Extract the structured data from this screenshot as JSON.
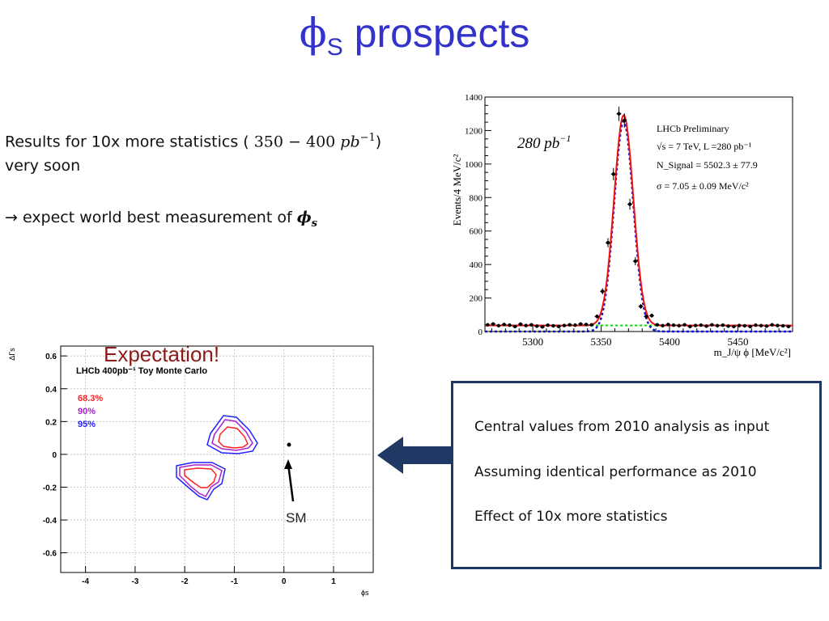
{
  "slide": {
    "title_main": "ϕ",
    "title_sub": "S",
    "title_rest": " prospects",
    "bullet1_pre": "Results for 10x more statistics (",
    "bullet1_math": "350  − 400 ",
    "bullet1_unit": "pb",
    "bullet1_exp": "−1",
    "bullet1_post": ")",
    "bullet1_line2": "very soon",
    "bullet2_pre": "→ expect world best measurement of ",
    "bullet2_phi": "ϕ",
    "bullet2_sub": "s"
  },
  "mass_plot": {
    "lumi_label": "280 ",
    "lumi_unit": "pb",
    "lumi_exp": "−1",
    "legend_line1": "LHCb Preliminary",
    "legend_line2": "√s = 7 TeV, L =280 pb⁻¹",
    "legend_line3": "N_Signal = 5502.3 ± 77.9",
    "legend_line4": "σ  = 7.05 ± 0.09 MeV/c²",
    "ylabel": "Events/4 MeV/c²",
    "xlabel": "m_J/ψ ϕ [MeV/c²]",
    "colors": {
      "fit": "#ee1111",
      "signal": "#1111cc",
      "background": "#11cc11",
      "data": "#000000"
    }
  },
  "contour_plot": {
    "expectation_label": "Expectation!",
    "plot_title": "LHCb 400pb⁻¹ Toy Monte Carlo",
    "cl_68": "68.3%",
    "cl_90": "90%",
    "cl_95": "95%",
    "sm_label": "SM",
    "ylabel": "ΔΓs",
    "xlabel": "ϕs",
    "colors": {
      "cl_68": "#ff2222",
      "cl_90": "#aa22cc",
      "cl_95": "#2222ff"
    }
  },
  "info_box": {
    "line1": "Central values from 2010 analysis as input",
    "line2": "Assuming identical performance as 2010",
    "line3": "Effect of 10x more statistics"
  },
  "chart_data": [
    {
      "type": "scatter",
      "title": "LHCb Preliminary",
      "xlabel": "m_J/ψ ϕ [MeV/c²]",
      "ylabel": "Events/4 MeV/c²",
      "xlim": [
        5265,
        5490
      ],
      "ylim": [
        0,
        1400
      ],
      "x_ticks": [
        "5300",
        "5350",
        "5400",
        "5450"
      ],
      "y_ticks": [
        "0",
        "200",
        "400",
        "600",
        "800",
        "1000",
        "1200",
        "1400"
      ],
      "series": [
        {
          "name": "data",
          "x": [
            5267,
            5271,
            5275,
            5279,
            5283,
            5287,
            5291,
            5295,
            5299,
            5303,
            5307,
            5311,
            5315,
            5319,
            5323,
            5327,
            5331,
            5335,
            5339,
            5343,
            5347,
            5351,
            5355,
            5359,
            5363,
            5367,
            5371,
            5375,
            5379,
            5383,
            5387,
            5391,
            5395,
            5399,
            5403,
            5407,
            5411,
            5415,
            5419,
            5423,
            5427,
            5431,
            5435,
            5439,
            5443,
            5447,
            5451,
            5455,
            5459,
            5463,
            5467,
            5471,
            5475,
            5479,
            5483,
            5487
          ],
          "values": [
            40,
            45,
            35,
            42,
            38,
            30,
            44,
            36,
            40,
            32,
            28,
            38,
            34,
            30,
            36,
            40,
            38,
            45,
            42,
            40,
            90,
            240,
            530,
            940,
            1300,
            1260,
            760,
            420,
            150,
            90,
            95,
            40,
            35,
            42,
            38,
            35,
            40,
            30,
            36,
            38,
            32,
            40,
            35,
            38,
            32,
            30,
            36,
            34,
            30,
            38,
            35,
            32,
            40,
            36,
            34,
            30
          ]
        }
      ]
    },
    {
      "type": "line",
      "title": "LHCb 400pb⁻¹ Toy Monte Carlo",
      "xlabel": "ϕs",
      "ylabel": "ΔΓs",
      "xlim": [
        -4.5,
        1.8
      ],
      "ylim": [
        -0.72,
        0.66
      ],
      "x_ticks": [
        "-4",
        "-3",
        "-2",
        "-1",
        "0",
        "1"
      ],
      "y_ticks": [
        "0.6",
        "0.4",
        "0.2",
        "0",
        "-0.2",
        "-0.4",
        "-0.6"
      ],
      "sm_point": [
        -0.04,
        0.09
      ]
    }
  ]
}
